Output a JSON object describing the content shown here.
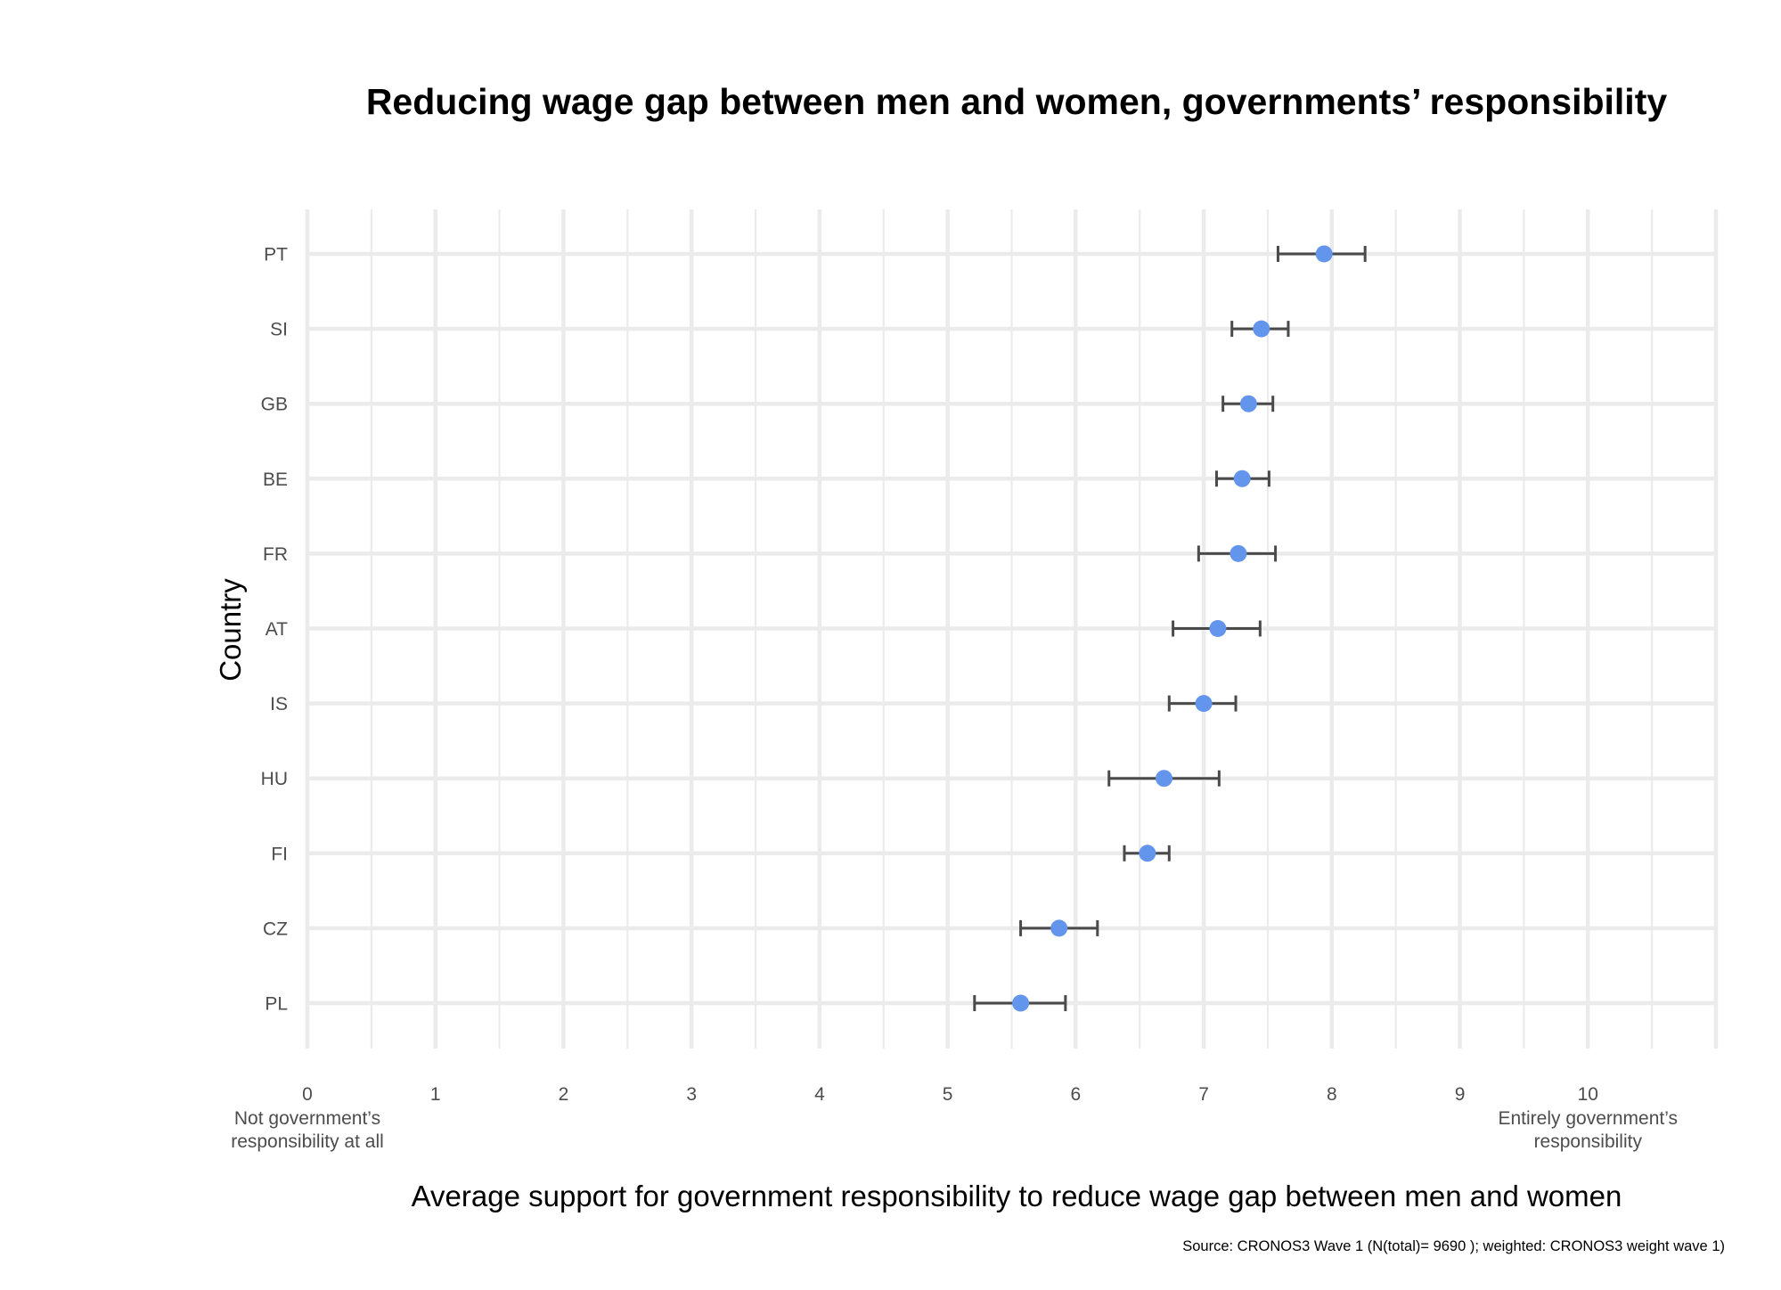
{
  "chart_data": {
    "type": "scatter",
    "subtype": "point-with-error-bars",
    "title": "Reducing wage gap between men and women, governments’ responsibility",
    "xlabel": "Average support for government responsibility to reduce wage gap between men and women",
    "ylabel": "Country",
    "xlim": [
      0,
      11
    ],
    "x_ticks": [
      0,
      1,
      2,
      3,
      4,
      5,
      6,
      7,
      8,
      9,
      10
    ],
    "x_tick_labels": [
      "0",
      "1",
      "2",
      "3",
      "4",
      "5",
      "6",
      "7",
      "8",
      "9",
      "10"
    ],
    "x_anchor_labels": [
      {
        "at": 0,
        "lines": [
          "Not government’s",
          "responsibility at all"
        ]
      },
      {
        "at": 10,
        "lines": [
          "Entirely government’s",
          "responsibility"
        ]
      }
    ],
    "grid": true,
    "legend": "none",
    "point_color": "#6495ED",
    "errorbar_color": "#4A4A4A",
    "categories": [
      "PT",
      "SI",
      "GB",
      "BE",
      "FR",
      "AT",
      "IS",
      "HU",
      "FI",
      "CZ",
      "PL"
    ],
    "values": [
      7.94,
      7.45,
      7.35,
      7.3,
      7.27,
      7.11,
      7.0,
      6.69,
      6.56,
      5.87,
      5.57
    ],
    "ci_low": [
      7.58,
      7.22,
      7.15,
      7.1,
      6.96,
      6.76,
      6.73,
      6.26,
      6.38,
      5.57,
      5.21
    ],
    "ci_high": [
      8.26,
      7.66,
      7.54,
      7.51,
      7.56,
      7.44,
      7.25,
      7.12,
      6.73,
      6.17,
      5.92
    ],
    "source": "Source: CRONOS3 Wave 1 (N(total)= 9690 ); weighted: CRONOS3 weight wave 1)"
  }
}
